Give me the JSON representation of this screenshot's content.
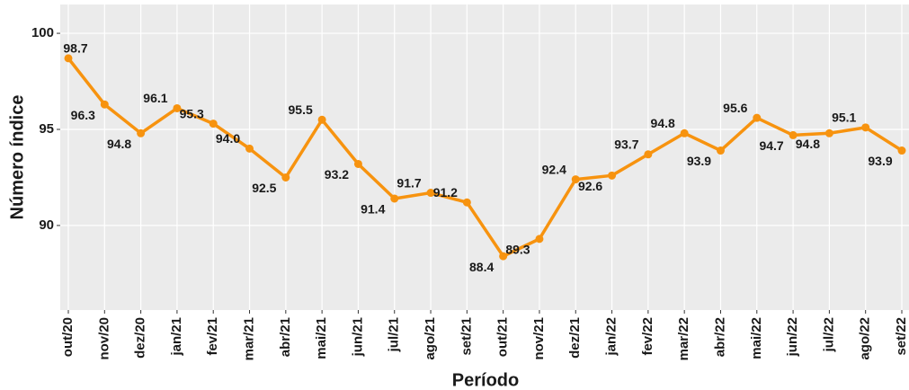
{
  "chart_data": {
    "type": "line",
    "x_label": "Período",
    "y_label": "Número índice",
    "categories": [
      "out/20",
      "nov/20",
      "dez/20",
      "jan/21",
      "fev/21",
      "mar/21",
      "abr/21",
      "mai/21",
      "jun/21",
      "jul/21",
      "ago/21",
      "set/21",
      "out/21",
      "nov/21",
      "dez/21",
      "jan/22",
      "fev/22",
      "mar/22",
      "abr/22",
      "mai/22",
      "jun/22",
      "jul/22",
      "ago/22",
      "set/22"
    ],
    "values": [
      98.7,
      96.3,
      94.8,
      96.1,
      95.3,
      94.0,
      92.5,
      95.5,
      93.2,
      91.4,
      91.7,
      91.2,
      88.4,
      89.3,
      92.4,
      92.6,
      93.7,
      94.8,
      93.9,
      95.6,
      94.7,
      94.8,
      95.1,
      93.9
    ],
    "value_labels": [
      "98.7",
      "96.3",
      "94.8",
      "96.1",
      "95.3",
      "94.0",
      "92.5",
      "95.5",
      "93.2",
      "91.4",
      "91.7",
      "91.2",
      "88.4",
      "89.3",
      "92.4",
      "92.6",
      "93.7",
      "94.8",
      "93.9",
      "95.6",
      "94.7",
      "94.8",
      "95.1",
      "93.9"
    ],
    "color": "#f7930f",
    "ylim": [
      85.6,
      101.5
    ],
    "yticks": [
      90,
      95,
      100
    ],
    "grid": true
  }
}
